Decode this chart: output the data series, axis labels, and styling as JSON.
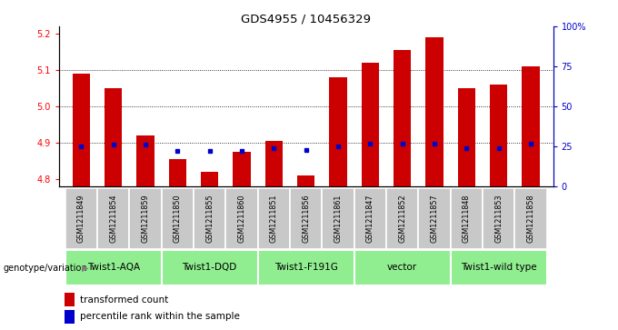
{
  "title": "GDS4955 / 10456329",
  "samples": [
    "GSM1211849",
    "GSM1211854",
    "GSM1211859",
    "GSM1211850",
    "GSM1211855",
    "GSM1211860",
    "GSM1211851",
    "GSM1211856",
    "GSM1211861",
    "GSM1211847",
    "GSM1211852",
    "GSM1211857",
    "GSM1211848",
    "GSM1211853",
    "GSM1211858"
  ],
  "red_values": [
    5.09,
    5.05,
    4.92,
    4.855,
    4.82,
    4.875,
    4.905,
    4.81,
    5.08,
    5.12,
    5.155,
    5.19,
    5.05,
    5.06,
    5.11
  ],
  "blue_values": [
    25,
    26,
    26,
    22,
    22,
    22,
    24,
    23,
    25,
    27,
    27,
    27,
    24,
    24,
    27
  ],
  "ylim_left": [
    4.78,
    5.22
  ],
  "ylim_right": [
    0,
    100
  ],
  "yticks_left": [
    4.8,
    4.9,
    5.0,
    5.1,
    5.2
  ],
  "yticks_right": [
    0,
    25,
    50,
    75,
    100
  ],
  "ytick_labels_right": [
    "0",
    "25",
    "50",
    "75",
    "100%"
  ],
  "groups": [
    {
      "label": "Twist1-AQA",
      "start": 0,
      "end": 2,
      "color": "#90EE90"
    },
    {
      "label": "Twist1-DQD",
      "start": 3,
      "end": 5,
      "color": "#90EE90"
    },
    {
      "label": "Twist1-F191G",
      "start": 6,
      "end": 8,
      "color": "#90EE90"
    },
    {
      "label": "vector",
      "start": 9,
      "end": 11,
      "color": "#90EE90"
    },
    {
      "label": "Twist1-wild type",
      "start": 12,
      "end": 14,
      "color": "#90EE90"
    }
  ],
  "bar_bottom": 4.78,
  "red_color": "#CC0000",
  "blue_color": "#0000CC",
  "sample_box_color": "#C8C8C8",
  "legend_red": "transformed count",
  "legend_blue": "percentile rank within the sample",
  "genotype_label": "genotype/variation",
  "bar_width": 0.55
}
